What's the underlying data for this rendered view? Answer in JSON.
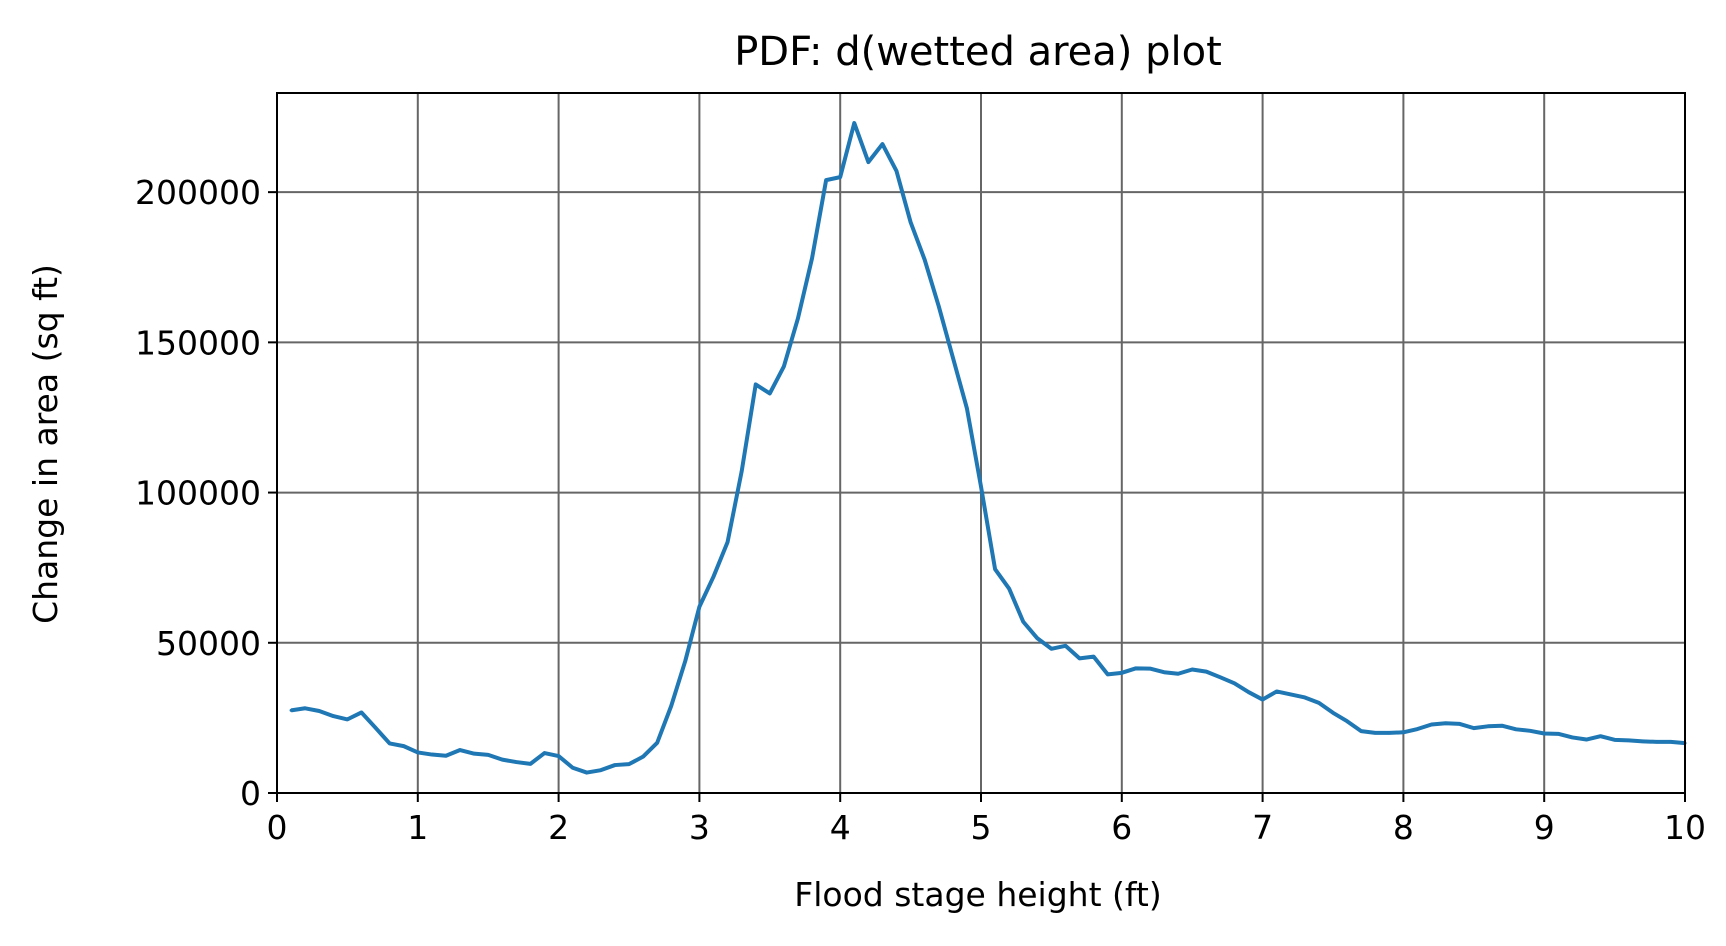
{
  "chart_data": {
    "type": "line",
    "title": "PDF: d(wetted area) plot",
    "xlabel": "Flood stage height (ft)",
    "ylabel": "Change in area (sq ft)",
    "xlim": [
      0,
      10
    ],
    "ylim": [
      0,
      233000
    ],
    "x_ticks": [
      0,
      1,
      2,
      3,
      4,
      5,
      6,
      7,
      8,
      9,
      10
    ],
    "x_tick_labels": [
      "0",
      "1",
      "2",
      "3",
      "4",
      "5",
      "6",
      "7",
      "8",
      "9",
      "10"
    ],
    "y_ticks": [
      0,
      50000,
      100000,
      150000,
      200000
    ],
    "y_tick_labels": [
      "0",
      "50000",
      "100000",
      "150000",
      "200000"
    ],
    "grid": true,
    "colors": {
      "line": "#1f77b4",
      "grid": "#666666",
      "axes": "#000000"
    },
    "series": [
      {
        "x": [
          0.1,
          0.2,
          0.3,
          0.4,
          0.5,
          0.6,
          0.7,
          0.8,
          0.9,
          1.0,
          1.1,
          1.2,
          1.3,
          1.4,
          1.5,
          1.6,
          1.7,
          1.8,
          1.9,
          2.0,
          2.1,
          2.2,
          2.3,
          2.4,
          2.5,
          2.6,
          2.7,
          2.8,
          2.9,
          3.0,
          3.1,
          3.2,
          3.3,
          3.4,
          3.5,
          3.6,
          3.7,
          3.8,
          3.9,
          4.0,
          4.1,
          4.2,
          4.3,
          4.4,
          4.5,
          4.6,
          4.7,
          4.8,
          4.9,
          5.0,
          5.1,
          5.2,
          5.3,
          5.4,
          5.5,
          5.6,
          5.7,
          5.8,
          5.9,
          6.0,
          6.1,
          6.2,
          6.3,
          6.4,
          6.5,
          6.6,
          6.7,
          6.8,
          6.9,
          7.0,
          7.1,
          7.2,
          7.3,
          7.4,
          7.5,
          7.6,
          7.7,
          7.8,
          7.9,
          8.0,
          8.1,
          8.2,
          8.3,
          8.4,
          8.5,
          8.6,
          8.7,
          8.8,
          8.9,
          9.0,
          9.1,
          9.2,
          9.3,
          9.4,
          9.5,
          9.6,
          9.7,
          9.8,
          9.9,
          10.0
        ],
        "values": [
          27500,
          28200,
          27300,
          25600,
          24500,
          26800,
          21700,
          16500,
          15600,
          13500,
          12800,
          12400,
          14300,
          13100,
          12700,
          11100,
          10300,
          9700,
          13300,
          12300,
          8400,
          6800,
          7600,
          9300,
          9600,
          12100,
          16700,
          29000,
          44000,
          62000,
          72000,
          83500,
          107000,
          136000,
          133000,
          142000,
          158000,
          178000,
          204000,
          205000,
          223000,
          210000,
          216000,
          207000,
          190000,
          177500,
          162000,
          145000,
          128000,
          102000,
          74500,
          68000,
          57000,
          51500,
          48000,
          49000,
          44800,
          45400,
          39500,
          40000,
          41500,
          41400,
          40200,
          39700,
          41100,
          40400,
          38500,
          36500,
          33600,
          31100,
          33800,
          32800,
          31800,
          30000,
          26700,
          23900,
          20600,
          20000,
          20000,
          20200,
          21300,
          22800,
          23200,
          23000,
          21600,
          22200,
          22400,
          21200,
          20700,
          19800,
          19700,
          18500,
          17800,
          18900,
          17700,
          17500,
          17200,
          17000,
          17000,
          16600
        ]
      }
    ]
  }
}
